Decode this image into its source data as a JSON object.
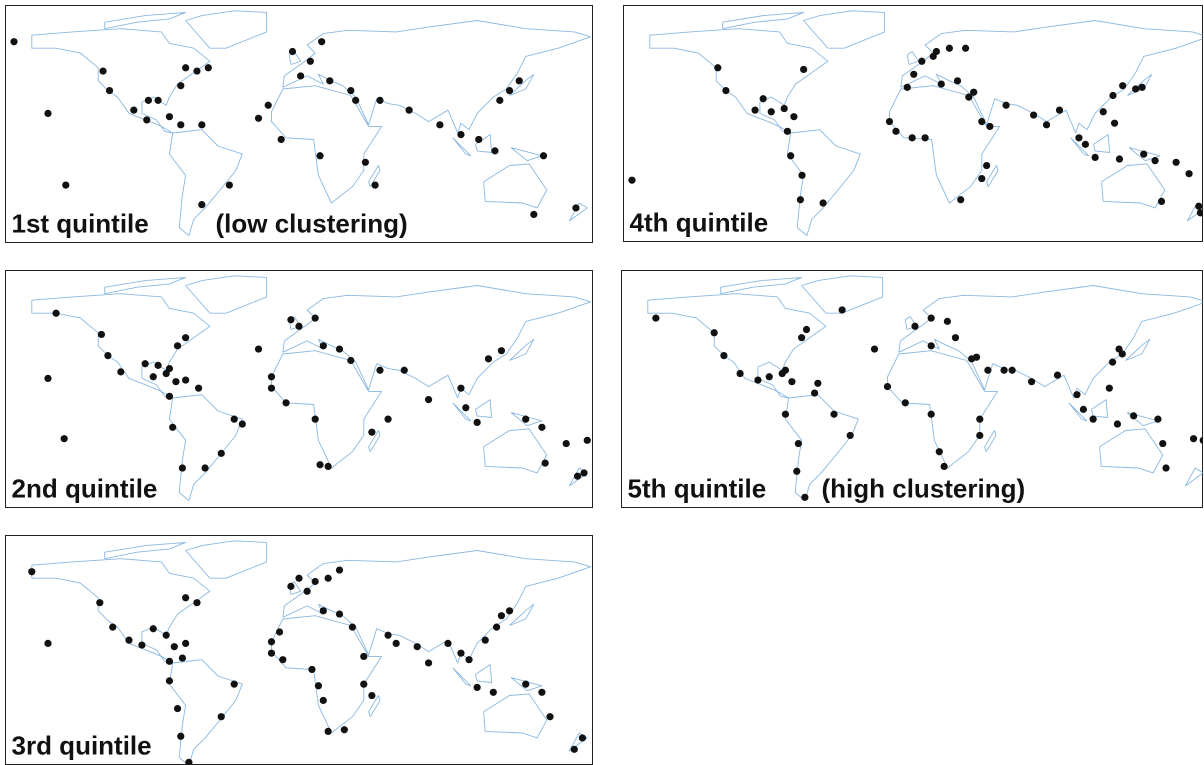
{
  "panels": [
    {
      "label": "1st quintile",
      "note": "(low clustering)",
      "points": [
        [
          -176,
          64
        ],
        [
          -121,
          46
        ],
        [
          -117,
          34
        ],
        [
          -102,
          22
        ],
        [
          -93,
          28
        ],
        [
          -87,
          28
        ],
        [
          -94,
          16
        ],
        [
          -80,
          18
        ],
        [
          -73,
          13
        ],
        [
          -60,
          13
        ],
        [
          -70,
          48
        ],
        [
          -63,
          46
        ],
        [
          -56,
          48
        ],
        [
          -73,
          37
        ],
        [
          -19,
          25
        ],
        [
          -4,
          58
        ],
        [
          1,
          43
        ],
        [
          7,
          52
        ],
        [
          14,
          64
        ],
        [
          19,
          40
        ],
        [
          32,
          34
        ],
        [
          35,
          28
        ],
        [
          13,
          -6
        ],
        [
          41,
          -10
        ],
        [
          47,
          -24
        ],
        [
          50,
          28
        ],
        [
          68,
          22
        ],
        [
          87,
          13
        ],
        [
          100,
          7
        ],
        [
          111,
          4
        ],
        [
          121,
          -3
        ],
        [
          130,
          34
        ],
        [
          136,
          40
        ],
        [
          124,
          28
        ],
        [
          151,
          -6
        ],
        [
          145,
          -42
        ],
        [
          171,
          -38
        ],
        [
          -155,
          20
        ],
        [
          -144,
          -24
        ],
        [
          -60,
          -36
        ],
        [
          -43,
          -24
        ],
        [
          -11,
          4
        ],
        [
          -25,
          17
        ]
      ]
    },
    {
      "label": "4th quintile",
      "points": [
        [
          -123,
          48
        ],
        [
          -118,
          34
        ],
        [
          -100,
          22
        ],
        [
          -95,
          29
        ],
        [
          -90,
          21
        ],
        [
          -82,
          23
        ],
        [
          -80,
          9
        ],
        [
          -76,
          18
        ],
        [
          -70,
          47
        ],
        [
          -176,
          -21
        ],
        [
          -78,
          -6
        ],
        [
          -72,
          -33
        ],
        [
          -71,
          -18
        ],
        [
          -58,
          -35
        ],
        [
          -6,
          36
        ],
        [
          -2,
          44
        ],
        [
          3,
          52
        ],
        [
          10,
          55
        ],
        [
          12,
          58
        ],
        [
          20,
          60
        ],
        [
          30,
          60
        ],
        [
          25,
          40
        ],
        [
          15,
          38
        ],
        [
          35,
          33
        ],
        [
          32,
          30
        ],
        [
          -17,
          15
        ],
        [
          -13,
          9
        ],
        [
          -3,
          5
        ],
        [
          5,
          5
        ],
        [
          40,
          15
        ],
        [
          45,
          12
        ],
        [
          43,
          -12
        ],
        [
          40,
          -20
        ],
        [
          27,
          -33
        ],
        [
          55,
          25
        ],
        [
          72,
          19
        ],
        [
          80,
          13
        ],
        [
          88,
          22
        ],
        [
          100,
          5
        ],
        [
          104,
          1
        ],
        [
          110,
          -7
        ],
        [
          115,
          21
        ],
        [
          121,
          31
        ],
        [
          127,
          37
        ],
        [
          135,
          35
        ],
        [
          139,
          36
        ],
        [
          122,
          14
        ],
        [
          125,
          -8
        ],
        [
          140,
          -5
        ],
        [
          147,
          -9
        ],
        [
          160,
          -10
        ],
        [
          168,
          -17
        ],
        [
          151,
          -34
        ],
        [
          175,
          -41
        ],
        [
          174,
          -37
        ]
      ]
    },
    {
      "label": "2nd quintile",
      "points": [
        [
          -150,
          60
        ],
        [
          -122,
          47
        ],
        [
          -118,
          34
        ],
        [
          -110,
          24
        ],
        [
          -95,
          29
        ],
        [
          -90,
          21
        ],
        [
          -87,
          28
        ],
        [
          -80,
          26
        ],
        [
          -82,
          23
        ],
        [
          -76,
          18
        ],
        [
          -70,
          19
        ],
        [
          -62,
          14
        ],
        [
          -80,
          9
        ],
        [
          -75,
          40
        ],
        [
          -70,
          45
        ],
        [
          -155,
          20
        ],
        [
          -145,
          -17
        ],
        [
          -78,
          -10
        ],
        [
          -72,
          -35
        ],
        [
          -58,
          -35
        ],
        [
          -48,
          -26
        ],
        [
          -40,
          -5
        ],
        [
          -35,
          -8
        ],
        [
          -25,
          38
        ],
        [
          -5,
          56
        ],
        [
          0,
          52
        ],
        [
          10,
          57
        ],
        [
          15,
          40
        ],
        [
          25,
          38
        ],
        [
          32,
          31
        ],
        [
          -17,
          21
        ],
        [
          -17,
          14
        ],
        [
          -8,
          5
        ],
        [
          10,
          -5
        ],
        [
          13,
          -33
        ],
        [
          18,
          -34
        ],
        [
          45,
          -13
        ],
        [
          55,
          -5
        ],
        [
          50,
          25
        ],
        [
          65,
          25
        ],
        [
          80,
          7
        ],
        [
          100,
          14
        ],
        [
          103,
          2
        ],
        [
          110,
          -7
        ],
        [
          117,
          32
        ],
        [
          125,
          37
        ],
        [
          140,
          -5
        ],
        [
          150,
          -10
        ],
        [
          165,
          -20
        ],
        [
          178,
          -18
        ],
        [
          152,
          -32
        ],
        [
          172,
          -40
        ],
        [
          176,
          -38
        ]
      ]
    },
    {
      "label": "5th quintile",
      "note": "(high clustering)",
      "points": [
        [
          -160,
          57
        ],
        [
          -124,
          48
        ],
        [
          -118,
          34
        ],
        [
          -108,
          23
        ],
        [
          -97,
          19
        ],
        [
          -90,
          21
        ],
        [
          -82,
          23
        ],
        [
          -80,
          25
        ],
        [
          -76,
          18
        ],
        [
          -70,
          45
        ],
        [
          -62,
          11
        ],
        [
          -60,
          17
        ],
        [
          -67,
          50
        ],
        [
          -45,
          62
        ],
        [
          -80,
          -2
        ],
        [
          -72,
          -20
        ],
        [
          -73,
          -37
        ],
        [
          -68,
          -53
        ],
        [
          -50,
          -2
        ],
        [
          -40,
          -15
        ],
        [
          -25,
          38
        ],
        [
          0,
          52
        ],
        [
          10,
          57
        ],
        [
          20,
          55
        ],
        [
          25,
          45
        ],
        [
          35,
          32
        ],
        [
          38,
          33
        ],
        [
          45,
          25
        ],
        [
          10,
          40
        ],
        [
          -17,
          15
        ],
        [
          -6,
          5
        ],
        [
          10,
          -2
        ],
        [
          15,
          -25
        ],
        [
          18,
          -34
        ],
        [
          40,
          -5
        ],
        [
          40,
          -15
        ],
        [
          55,
          25
        ],
        [
          60,
          25
        ],
        [
          72,
          18
        ],
        [
          88,
          22
        ],
        [
          100,
          10
        ],
        [
          104,
          1
        ],
        [
          110,
          -5
        ],
        [
          120,
          14
        ],
        [
          122,
          30
        ],
        [
          126,
          38
        ],
        [
          128,
          35
        ],
        [
          125,
          -8
        ],
        [
          135,
          -3
        ],
        [
          150,
          -5
        ],
        [
          153,
          -20
        ],
        [
          172,
          -17
        ],
        [
          155,
          -35
        ],
        [
          178,
          -18
        ]
      ]
    },
    {
      "label": "3rd quintile",
      "points": [
        [
          -165,
          64
        ],
        [
          -155,
          20
        ],
        [
          -123,
          45
        ],
        [
          -115,
          30
        ],
        [
          -105,
          22
        ],
        [
          -97,
          19
        ],
        [
          -90,
          29
        ],
        [
          -82,
          25
        ],
        [
          -77,
          18
        ],
        [
          -70,
          20
        ],
        [
          -80,
          9
        ],
        [
          -72,
          11
        ],
        [
          -63,
          45
        ],
        [
          -70,
          48
        ],
        [
          -80,
          -3
        ],
        [
          -75,
          -20
        ],
        [
          -73,
          -37
        ],
        [
          -68,
          -53
        ],
        [
          -48,
          -25
        ],
        [
          -40,
          -5
        ],
        [
          -12,
          27
        ],
        [
          -17,
          14
        ],
        [
          -5,
          55
        ],
        [
          0,
          60
        ],
        [
          5,
          52
        ],
        [
          10,
          58
        ],
        [
          18,
          60
        ],
        [
          25,
          65
        ],
        [
          15,
          40
        ],
        [
          25,
          38
        ],
        [
          33,
          30
        ],
        [
          -17,
          21
        ],
        [
          -10,
          10
        ],
        [
          8,
          4
        ],
        [
          12,
          -6
        ],
        [
          15,
          -15
        ],
        [
          18,
          -34
        ],
        [
          28,
          -33
        ],
        [
          40,
          -5
        ],
        [
          45,
          -12
        ],
        [
          40,
          12
        ],
        [
          55,
          25
        ],
        [
          60,
          20
        ],
        [
          73,
          18
        ],
        [
          80,
          8
        ],
        [
          92,
          20
        ],
        [
          100,
          14
        ],
        [
          105,
          10
        ],
        [
          110,
          -7
        ],
        [
          120,
          -10
        ],
        [
          115,
          22
        ],
        [
          122,
          30
        ],
        [
          125,
          37
        ],
        [
          130,
          40
        ],
        [
          140,
          -5
        ],
        [
          150,
          -10
        ],
        [
          155,
          -25
        ],
        [
          170,
          -45
        ],
        [
          175,
          -38
        ]
      ]
    }
  ]
}
